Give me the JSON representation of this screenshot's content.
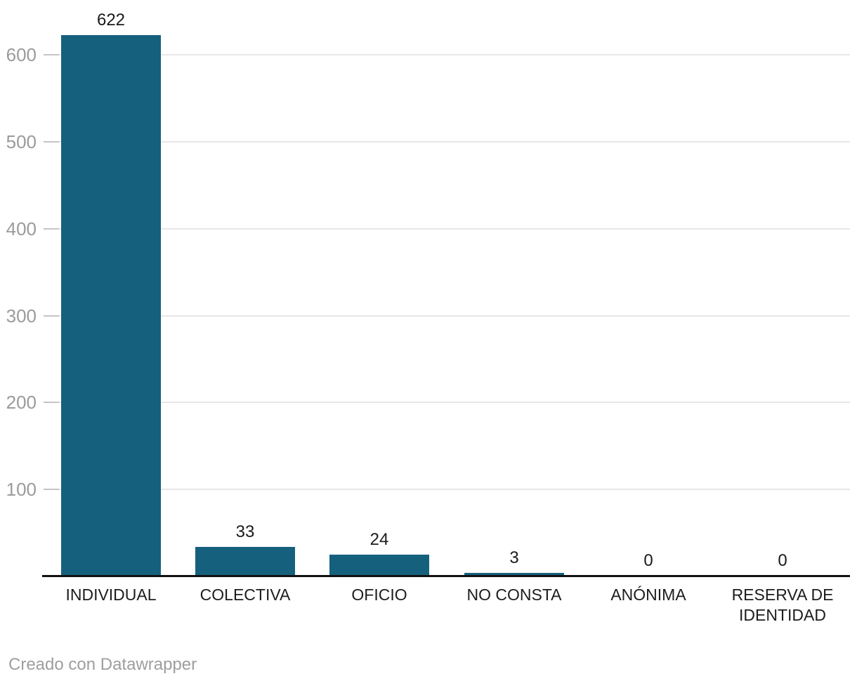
{
  "chart_data": {
    "type": "bar",
    "categories": [
      "INDIVIDUAL",
      "COLECTIVA",
      "OFICIO",
      "NO CONSTA",
      "ANÓNIMA",
      "RESERVA DE IDENTIDAD"
    ],
    "values": [
      622,
      33,
      24,
      3,
      0,
      0
    ],
    "value_labels": [
      "622",
      "33",
      "24",
      "3",
      "0",
      "0"
    ],
    "title": "",
    "xlabel": "",
    "ylabel": "",
    "ylim": [
      0,
      650
    ],
    "yticks": [
      100,
      200,
      300,
      400,
      500,
      600
    ],
    "grid": true,
    "legend": "none",
    "bar_color": "#15617d"
  },
  "colors": {
    "bar": "#15617d",
    "axis_tick_label": "#9b9b9b",
    "gridline": "#e7e7e7",
    "tick_dash": "#c4c4c4",
    "baseline": "#111111",
    "category_label": "#1d1d1d",
    "value_label": "#1a1a1a",
    "background": "#ffffff"
  },
  "footer": {
    "credit": "Creado con Datawrapper"
  }
}
